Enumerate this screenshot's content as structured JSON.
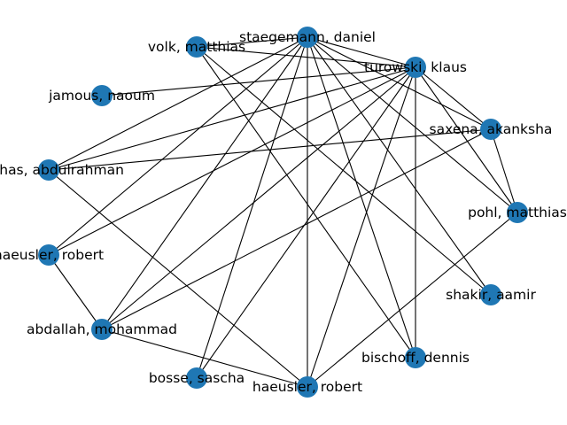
{
  "graph": {
    "node_color": "#1f77b4",
    "edge_color": "#000000",
    "nodes": [
      {
        "id": "staegemann",
        "label": "staegemann, daniel"
      },
      {
        "id": "turowski",
        "label": "turowski, klaus"
      },
      {
        "id": "saxena",
        "label": "saxena, akanksha"
      },
      {
        "id": "pohl",
        "label": "pohl, matthias"
      },
      {
        "id": "shakir",
        "label": "shakir, aamir"
      },
      {
        "id": "bischoff",
        "label": "bischoff, dennis"
      },
      {
        "id": "haeusler_b",
        "label": "haeusler, robert"
      },
      {
        "id": "bosse",
        "label": "bosse, sascha"
      },
      {
        "id": "abdallah",
        "label": "abdallah, mohammad"
      },
      {
        "id": "haeusler_l",
        "label": "haeusler, robert"
      },
      {
        "id": "nahhas",
        "label": "nahhas, abdulrahman"
      },
      {
        "id": "jamous",
        "label": "jamous, naoum"
      },
      {
        "id": "volk",
        "label": "volk, matthias"
      }
    ],
    "edges": [
      [
        "staegemann",
        "turowski"
      ],
      [
        "staegemann",
        "saxena"
      ],
      [
        "staegemann",
        "pohl"
      ],
      [
        "staegemann",
        "shakir"
      ],
      [
        "staegemann",
        "bischoff"
      ],
      [
        "staegemann",
        "haeusler_b"
      ],
      [
        "staegemann",
        "bosse"
      ],
      [
        "staegemann",
        "abdallah"
      ],
      [
        "staegemann",
        "haeusler_l"
      ],
      [
        "staegemann",
        "nahhas"
      ],
      [
        "staegemann",
        "volk"
      ],
      [
        "turowski",
        "saxena"
      ],
      [
        "turowski",
        "pohl"
      ],
      [
        "turowski",
        "bischoff"
      ],
      [
        "turowski",
        "haeusler_b"
      ],
      [
        "turowski",
        "bosse"
      ],
      [
        "turowski",
        "abdallah"
      ],
      [
        "turowski",
        "haeusler_l"
      ],
      [
        "turowski",
        "nahhas"
      ],
      [
        "turowski",
        "jamous"
      ],
      [
        "turowski",
        "volk"
      ],
      [
        "saxena",
        "pohl"
      ],
      [
        "saxena",
        "abdallah"
      ],
      [
        "saxena",
        "nahhas"
      ],
      [
        "volk",
        "bischoff"
      ],
      [
        "volk",
        "shakir"
      ],
      [
        "nahhas",
        "haeusler_b"
      ],
      [
        "haeusler_l",
        "abdallah"
      ],
      [
        "abdallah",
        "haeusler_b"
      ],
      [
        "pohl",
        "haeusler_b"
      ]
    ]
  }
}
